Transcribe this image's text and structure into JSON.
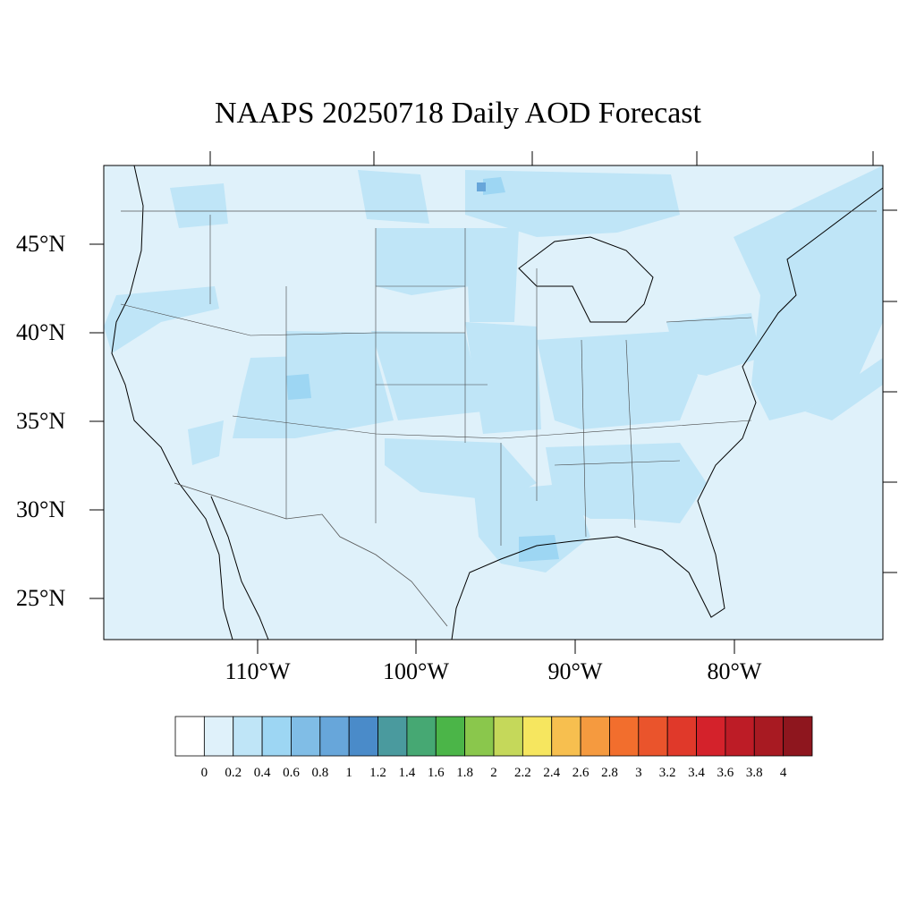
{
  "title": "NAAPS 20250718 Daily AOD Forecast",
  "map": {
    "lat_labels": [
      "45°N",
      "40°N",
      "35°N",
      "30°N",
      "25°N"
    ],
    "lon_labels": [
      "110°W",
      "100°W",
      "90°W",
      "80°W"
    ],
    "lat_range": [
      22.8,
      49.5
    ],
    "lon_range": [
      -119.0,
      -70.0
    ]
  },
  "legend": {
    "tick_labels": [
      "0",
      "0.2",
      "0.4",
      "0.6",
      "0.8",
      "1",
      "1.2",
      "1.4",
      "1.6",
      "1.8",
      "2",
      "2.2",
      "2.4",
      "2.6",
      "2.8",
      "3",
      "3.2",
      "3.4",
      "3.6",
      "3.8",
      "4"
    ],
    "colors": [
      "#ffffff",
      "#dff1fa",
      "#bfe5f7",
      "#9dd6f3",
      "#80bde6",
      "#67a6da",
      "#4a8bc9",
      "#4a9a9e",
      "#46a873",
      "#4bb548",
      "#8ac74c",
      "#c5d85a",
      "#f6e65f",
      "#f7bf4f",
      "#f59a3f",
      "#f26e2d",
      "#ea542c",
      "#e0392a",
      "#d4222b",
      "#bd1c26",
      "#a81a22",
      "#8e161e"
    ]
  }
}
